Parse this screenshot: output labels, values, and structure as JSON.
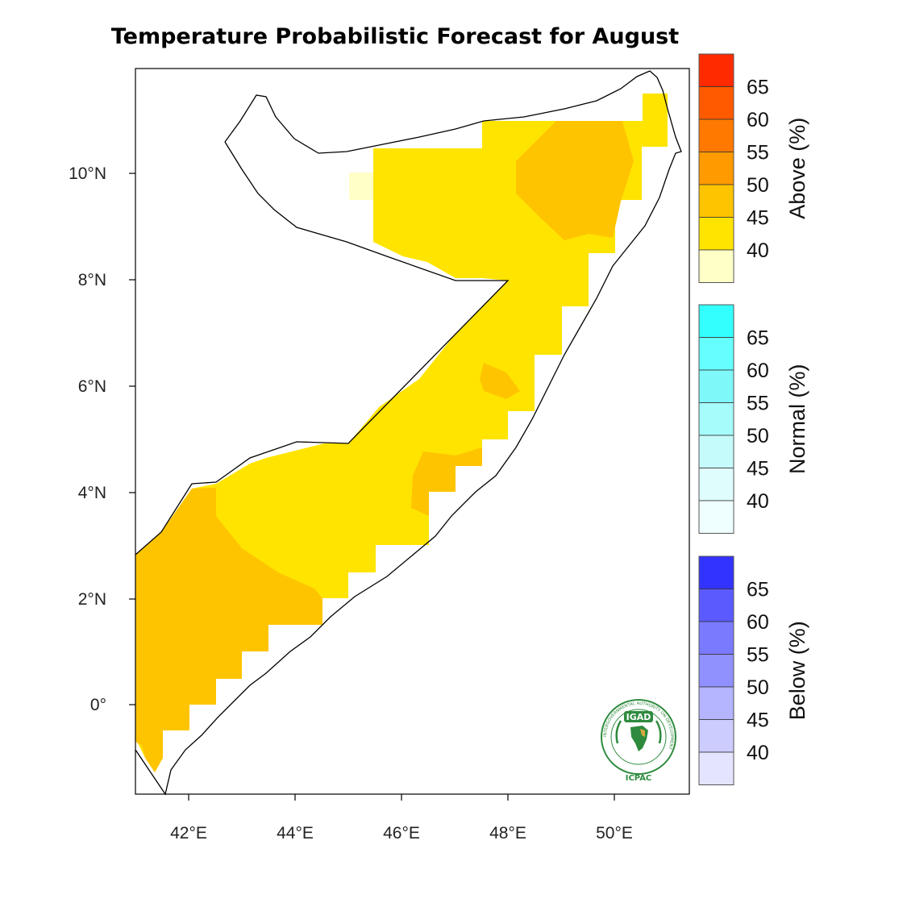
{
  "title": "Temperature Probabilistic Forecast for August",
  "axes": {
    "x_ticks": [
      "42°E",
      "44°E",
      "46°E",
      "48°E",
      "50°E"
    ],
    "y_ticks": [
      "10°N",
      "8°N",
      "6°N",
      "4°N",
      "2°N",
      "0°"
    ]
  },
  "colorbars": [
    {
      "title": "Above (%)",
      "labels": [
        "65",
        "60",
        "55",
        "50",
        "45",
        "40"
      ],
      "colors": [
        "#ff2a00",
        "#ff5a00",
        "#ff7800",
        "#ff9a00",
        "#ffc400",
        "#ffe400",
        "#ffffc8"
      ]
    },
    {
      "title": "Normal (%)",
      "labels": [
        "65",
        "60",
        "55",
        "50",
        "45",
        "40"
      ],
      "colors": [
        "#33ffff",
        "#66ffff",
        "#7ef8f8",
        "#a6fbfb",
        "#c6fbfb",
        "#e0fdfd",
        "#effefe"
      ]
    },
    {
      "title": "Below (%)",
      "labels": [
        "65",
        "60",
        "55",
        "50",
        "45",
        "40"
      ],
      "colors": [
        "#3333ff",
        "#5a5aff",
        "#7a7aff",
        "#9090ff",
        "#b4b4ff",
        "#ccccff",
        "#e4e4ff"
      ]
    }
  ],
  "forecast_colors": {
    "above_40": "#ffe400",
    "above_45": "#ffc400",
    "below_40": "#ffffc8"
  },
  "logo": {
    "name": "IGAD",
    "sub": "ICPAC",
    "ring_text": "INTERGOVERNMENTAL AUTHORITY ON DEVELOPMENT"
  }
}
